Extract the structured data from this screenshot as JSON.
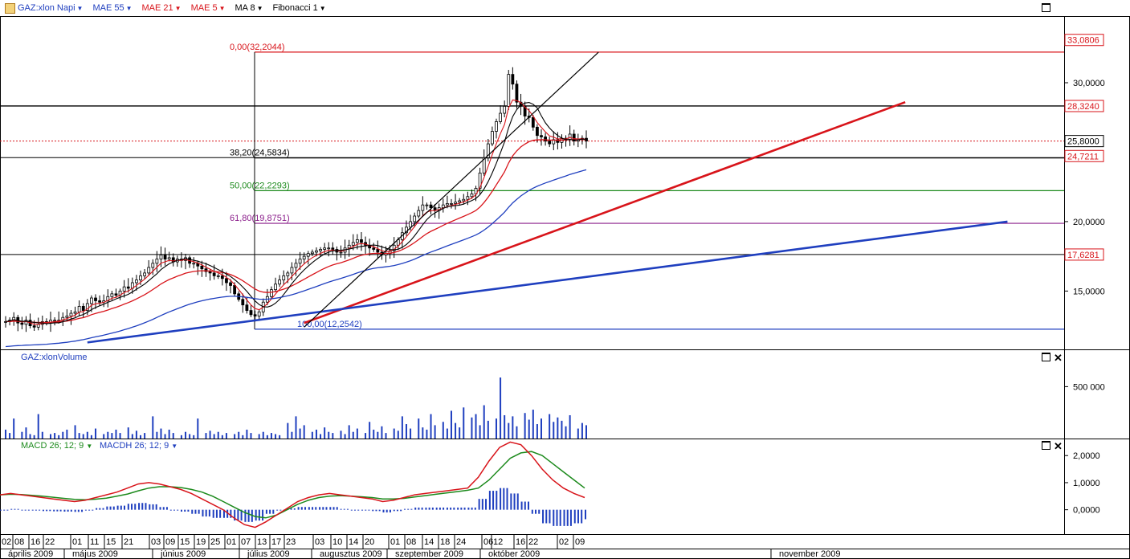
{
  "toolbar": {
    "items": [
      {
        "label": "GAZ:xlon Napi",
        "color": "#1f3fbf"
      },
      {
        "label": "MAE 55",
        "color": "#1f3fbf"
      },
      {
        "label": "MAE 21",
        "color": "#d8141a"
      },
      {
        "label": "MAE 5",
        "color": "#d8141a"
      },
      {
        "label": "MA 8",
        "color": "#000000"
      },
      {
        "label": "Fibonacci 1",
        "color": "#000000"
      }
    ]
  },
  "price_axis": {
    "ticks": [
      "30,0000",
      "20,0000",
      "15,0000"
    ],
    "flags": [
      {
        "label": "33,0806",
        "value": 33.0806,
        "color": "#d8141a"
      },
      {
        "label": "28,3240",
        "value": 28.324,
        "color": "#d8141a"
      },
      {
        "label": "25,8000",
        "value": 25.8,
        "color": "#000000"
      },
      {
        "label": "24,7211",
        "value": 24.7211,
        "color": "#d8141a"
      },
      {
        "label": "17,6281",
        "value": 17.6281,
        "color": "#d8141a"
      }
    ]
  },
  "fibonacci": [
    {
      "label": "0,00(32,2044)",
      "value": 32.2044,
      "color": "#d8141a"
    },
    {
      "label": "38,20(24,5834)",
      "value": 24.5834,
      "color": "#000000"
    },
    {
      "label": "50,00(22,2293)",
      "value": 22.2293,
      "color": "#1c8a1c"
    },
    {
      "label": "61,80(19,8751)",
      "value": 19.8751,
      "color": "#8a1c8a"
    },
    {
      "label": "100,00(12,2542)",
      "value": 12.2542,
      "color": "#1f3fbf"
    }
  ],
  "volume_pane": {
    "title": "GAZ:xlonVolume",
    "ticks": [
      "500 000"
    ]
  },
  "macd_pane": {
    "macd_label": "MACD 26; 12; 9",
    "macdh_label": "MACDH 26; 12; 9",
    "ticks": [
      "2,0000",
      "1,0000",
      "0,0000"
    ]
  },
  "date_axis": {
    "days": [
      "02",
      "08",
      "16",
      "22",
      "01",
      "11",
      "15",
      "21",
      "03",
      "09",
      "15",
      "19",
      "25",
      "01",
      "07",
      "13",
      "17",
      "23",
      "03",
      "10",
      "14",
      "20",
      "01",
      "08",
      "14",
      "18",
      "24",
      "06",
      "12",
      "16",
      "22",
      "02",
      "09"
    ],
    "months": [
      "április 2009",
      "május 2009",
      "június 2009",
      "július 2009",
      "augusztus 2009",
      "szeptember 2009",
      "október 2009",
      "november 2009"
    ]
  },
  "chart_data": {
    "type": "line",
    "note_series": "approximate daily closes, 1 Apr 2009 – 13 Oct 2009",
    "start_label": "április 2009",
    "close": [
      12.8,
      12.9,
      13.1,
      12.7,
      12.6,
      12.9,
      12.5,
      12.4,
      12.6,
      12.8,
      12.7,
      12.9,
      12.9,
      12.9,
      13.1,
      13.2,
      13.4,
      13.5,
      13.9,
      13.6,
      14.1,
      14.5,
      14.3,
      14.2,
      14.3,
      14.6,
      14.8,
      14.7,
      15.0,
      15.3,
      15.2,
      15.6,
      15.8,
      16.1,
      16.3,
      16.7,
      17.0,
      17.3,
      17.6,
      17.3,
      17.4,
      17.1,
      17.3,
      17.2,
      17.4,
      17.0,
      17.0,
      16.8,
      16.6,
      16.4,
      16.3,
      16.1,
      16.1,
      15.9,
      15.6,
      15.4,
      14.8,
      14.4,
      14.0,
      13.6,
      13.3,
      13.2,
      13.5,
      14.2,
      14.6,
      15.1,
      15.5,
      15.8,
      16.1,
      16.3,
      16.7,
      17.0,
      17.3,
      17.5,
      17.7,
      17.8,
      17.9,
      18.0,
      18.1,
      18.1,
      18.0,
      17.8,
      17.8,
      18.1,
      18.3,
      18.5,
      18.7,
      18.5,
      18.3,
      18.1,
      18.0,
      17.8,
      17.6,
      17.7,
      17.9,
      18.3,
      18.7,
      19.2,
      19.6,
      20.0,
      20.4,
      20.8,
      21.2,
      21.2,
      21.0,
      20.8,
      21.0,
      21.2,
      21.3,
      21.3,
      21.4,
      21.5,
      21.6,
      21.8,
      22.0,
      22.4,
      23.5,
      24.6,
      25.6,
      26.5,
      27.2,
      27.8,
      28.3,
      30.6,
      29.9,
      28.6,
      28.3,
      27.6,
      27.5,
      26.8,
      26.2,
      26.1,
      25.8,
      25.6,
      25.9,
      25.7,
      26.0,
      25.9,
      26.3,
      25.8,
      25.9,
      26.0,
      25.8
    ],
    "mae55": [
      12.0,
      12.1,
      12.2,
      12.3,
      12.4,
      12.5,
      12.6,
      12.7,
      12.8,
      12.9,
      13.0,
      13.1,
      13.2,
      13.3,
      13.4,
      13.5,
      13.6,
      13.7,
      13.8,
      13.9,
      14.0,
      14.1,
      14.2,
      14.3,
      14.5,
      14.7,
      14.9,
      15.1,
      15.3,
      15.5,
      15.7,
      15.8,
      15.9,
      15.9,
      15.9,
      15.8,
      15.7,
      15.6,
      15.5,
      15.4,
      15.4,
      15.4,
      15.5,
      15.6,
      15.7,
      15.8,
      15.9,
      16.0,
      16.1,
      16.3,
      16.5,
      16.7,
      16.9,
      17.1,
      17.3,
      17.5,
      17.6,
      17.7,
      17.7,
      17.8,
      17.8,
      17.9,
      17.9,
      18.0,
      18.1,
      18.2,
      18.4,
      18.6,
      18.8,
      19.0,
      19.3,
      19.6,
      20.0,
      20.6,
      21.3,
      22.0,
      22.7,
      23.2,
      23.6,
      23.9,
      24.1,
      24.3
    ],
    "mae55_start": 60,
    "trendlines": [
      {
        "name": "red trend",
        "color": "#d8141a",
        "from": [
          73,
          12.7
        ],
        "to": [
          220,
          28.6
        ]
      },
      {
        "name": "blue trend",
        "color": "#1f3fbf",
        "from": [
          20,
          11.3
        ],
        "to": [
          245,
          20.0
        ]
      },
      {
        "name": "black rise",
        "color": "#000000",
        "from": [
          73,
          12.4
        ],
        "to": [
          145,
          32.2
        ]
      }
    ],
    "ylim": [
      10.8,
      34.8
    ]
  },
  "volume_data": [
    8,
    5,
    18,
    6,
    10,
    4,
    3,
    22,
    6,
    4,
    5,
    3,
    6,
    8,
    12,
    5,
    4,
    6,
    3,
    9,
    4,
    6,
    5,
    8,
    5,
    10,
    4,
    7,
    3,
    5,
    20,
    6,
    9,
    4,
    8,
    5,
    3,
    6,
    4,
    3,
    18,
    5,
    7,
    4,
    6,
    3,
    5,
    4,
    6,
    3,
    8,
    5,
    4,
    6,
    3,
    5,
    4,
    3,
    14,
    6,
    20,
    9,
    12,
    6,
    8,
    4,
    10,
    6,
    5,
    7,
    4,
    12,
    6,
    9,
    5,
    15,
    8,
    6,
    11,
    5,
    9,
    7,
    20,
    13,
    9,
    18,
    10,
    8,
    22,
    12,
    15,
    9,
    25,
    14,
    10,
    28,
    19,
    22,
    12,
    30,
    16,
    18,
    55,
    21,
    14,
    20,
    11,
    23,
    17,
    26,
    13,
    18,
    22,
    15,
    19,
    16,
    11,
    21,
    9,
    14,
    12
  ],
  "macd_data": {
    "macd": [
      0.55,
      0.6,
      0.55,
      0.5,
      0.45,
      0.4,
      0.35,
      0.3,
      0.35,
      0.45,
      0.55,
      0.65,
      0.8,
      0.95,
      1.0,
      0.95,
      0.85,
      0.75,
      0.6,
      0.4,
      0.2,
      0.0,
      -0.3,
      -0.55,
      -0.65,
      -0.45,
      -0.2,
      0.05,
      0.3,
      0.45,
      0.55,
      0.6,
      0.55,
      0.5,
      0.45,
      0.4,
      0.3,
      0.35,
      0.45,
      0.55,
      0.6,
      0.65,
      0.7,
      0.75,
      0.8,
      1.2,
      1.8,
      2.3,
      2.5,
      2.4,
      2.0,
      1.5,
      1.1,
      0.8,
      0.6,
      0.45
    ],
    "signal": [
      0.55,
      0.57,
      0.56,
      0.53,
      0.5,
      0.46,
      0.42,
      0.38,
      0.37,
      0.39,
      0.43,
      0.5,
      0.58,
      0.7,
      0.8,
      0.85,
      0.85,
      0.82,
      0.75,
      0.65,
      0.5,
      0.3,
      0.1,
      -0.1,
      -0.25,
      -0.3,
      -0.2,
      0.0,
      0.2,
      0.35,
      0.45,
      0.5,
      0.52,
      0.5,
      0.48,
      0.45,
      0.4,
      0.4,
      0.42,
      0.47,
      0.52,
      0.57,
      0.62,
      0.67,
      0.72,
      0.8,
      1.1,
      1.5,
      1.9,
      2.1,
      2.15,
      2.0,
      1.7,
      1.4,
      1.1,
      0.8
    ],
    "ylim": [
      -0.9,
      2.6
    ]
  }
}
